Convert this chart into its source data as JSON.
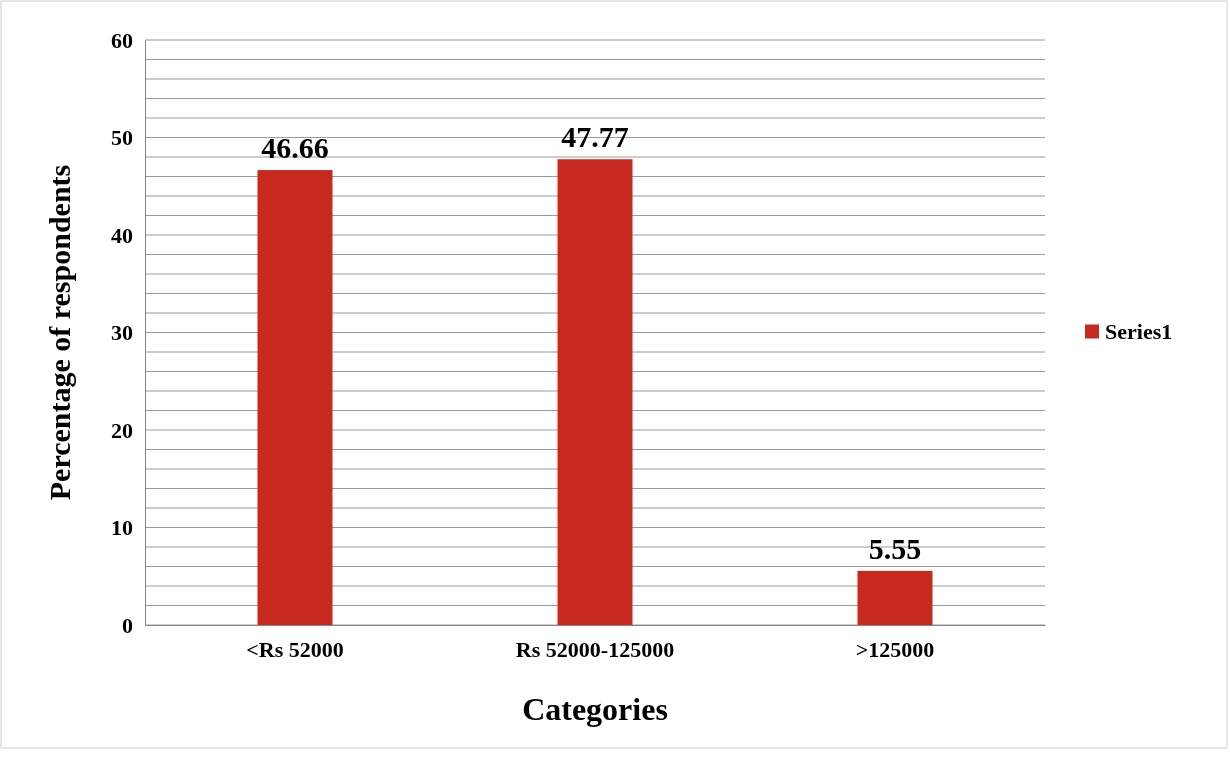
{
  "chart_data": {
    "type": "bar",
    "xlabel": "Categories",
    "ylabel": "Percentage of respondents",
    "categories": [
      "<Rs 52000",
      "Rs 52000-125000",
      ">125000"
    ],
    "series": [
      {
        "name": "Series1",
        "color": "#c8291e",
        "values": [
          46.66,
          47.77,
          5.55
        ]
      }
    ],
    "ylim": [
      0,
      60
    ],
    "yticks": [
      0,
      {
        "value": 2,
        "label": null
      },
      {
        "value": 4,
        "label": null
      },
      {
        "value": 6,
        "label": null
      },
      {
        "value": 8,
        "label": null
      },
      10,
      {
        "value": 12,
        "label": null
      },
      {
        "value": 14,
        "label": null
      },
      {
        "value": 16,
        "label": null
      },
      {
        "value": 18,
        "label": null
      },
      20,
      {
        "value": 22,
        "label": null
      },
      {
        "value": 24,
        "label": null
      },
      {
        "value": 26,
        "label": null
      },
      {
        "value": 28,
        "label": null
      },
      30,
      {
        "value": 32,
        "label": null
      },
      {
        "value": 34,
        "label": null
      },
      {
        "value": 36,
        "label": null
      },
      {
        "value": 38,
        "label": null
      },
      40,
      {
        "value": 42,
        "label": null
      },
      {
        "value": 44,
        "label": null
      },
      {
        "value": 46,
        "label": null
      },
      {
        "value": 48,
        "label": null
      },
      50,
      {
        "value": 52,
        "label": null
      },
      {
        "value": 54,
        "label": null
      },
      {
        "value": 56,
        "label": null
      },
      {
        "value": 58,
        "label": null
      },
      60
    ],
    "grid": "y",
    "legend": "right",
    "data_labels": true
  }
}
